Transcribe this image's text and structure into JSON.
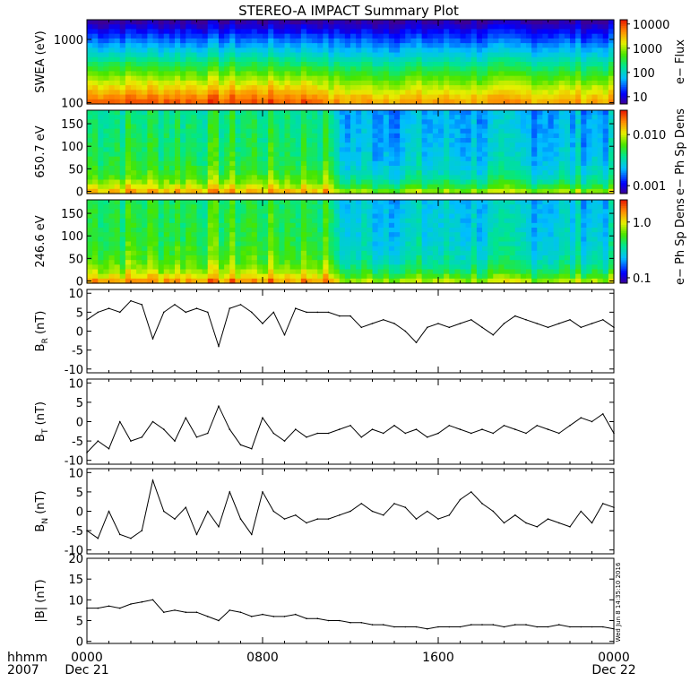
{
  "chart_data": {
    "title": "STEREO-A IMPACT Summary Plot",
    "time_axis": {
      "row_labels": [
        "hhmm",
        "2007"
      ],
      "ticks": [
        {
          "t": 0,
          "label": "0000",
          "sub": "Dec 21"
        },
        {
          "t": 8,
          "label": "0800",
          "sub": ""
        },
        {
          "t": 16,
          "label": "1600",
          "sub": ""
        },
        {
          "t": 24,
          "label": "0000",
          "sub": "Dec 22"
        }
      ],
      "range_hours": [
        0,
        24
      ]
    },
    "stamp": "Wed Jun  8 14:35:10 2016",
    "panels": [
      {
        "id": "swea",
        "type": "heatmap",
        "ylabel": "SWEA (eV)",
        "yscale": "log",
        "ylim": [
          95,
          2050
        ],
        "yticks": [
          {
            "v": 1000,
            "label": "1000"
          },
          {
            "v": 100,
            "label": "100"
          }
        ],
        "colorbar": {
          "scale": "log",
          "range": [
            5,
            15000
          ],
          "label": "e− Flux",
          "ticks": [
            {
              "v": 10000,
              "label": "10000"
            },
            {
              "v": 1000,
              "label": "1000"
            },
            {
              "v": 100,
              "label": "100"
            },
            {
              "v": 10,
              "label": "10"
            }
          ]
        }
      },
      {
        "id": "pad650",
        "type": "heatmap",
        "ylabel": "650.7 eV",
        "ylim": [
          -5,
          180
        ],
        "yticks": [
          {
            "v": 150,
            "label": "150"
          },
          {
            "v": 100,
            "label": "100"
          },
          {
            "v": 50,
            "label": "50"
          },
          {
            "v": 0,
            "label": "0"
          }
        ],
        "colorbar": {
          "scale": "log",
          "range": [
            0.0007,
            0.03
          ],
          "label": "e− Ph Sp Dens",
          "ticks": [
            {
              "v": 0.01,
              "label": "0.010"
            },
            {
              "v": 0.001,
              "label": "0.001"
            }
          ]
        }
      },
      {
        "id": "pad246",
        "type": "heatmap",
        "ylabel": "246.6 eV",
        "ylim": [
          -5,
          180
        ],
        "yticks": [
          {
            "v": 150,
            "label": "150"
          },
          {
            "v": 100,
            "label": "100"
          },
          {
            "v": 50,
            "label": "50"
          },
          {
            "v": 0,
            "label": "0"
          }
        ],
        "colorbar": {
          "scale": "log",
          "range": [
            0.08,
            2.5
          ],
          "label": "e− Ph Sp Dens",
          "ticks": [
            {
              "v": 1.0,
              "label": "1.0"
            },
            {
              "v": 0.1,
              "label": "0.1"
            }
          ]
        }
      },
      {
        "id": "br",
        "type": "line",
        "ylabel": "B",
        "ysub": "R",
        "yunit": " (nT)",
        "ylim": [
          -11,
          11
        ],
        "yticks": [
          {
            "v": 10,
            "label": "10"
          },
          {
            "v": 5,
            "label": "5"
          },
          {
            "v": 0,
            "label": "0"
          },
          {
            "v": -5,
            "label": "-5"
          },
          {
            "v": -10,
            "label": "-10"
          }
        ],
        "x": [
          0,
          0.5,
          1,
          1.5,
          2,
          2.5,
          3,
          3.5,
          4,
          4.5,
          5,
          5.5,
          6,
          6.5,
          7,
          7.5,
          8,
          8.5,
          9,
          9.5,
          10,
          10.5,
          11,
          11.5,
          12,
          12.5,
          13,
          13.5,
          14,
          14.5,
          15,
          15.5,
          16,
          16.5,
          17,
          17.5,
          18,
          18.5,
          19,
          19.5,
          20,
          20.5,
          21,
          21.5,
          22,
          22.5,
          23,
          23.5,
          24
        ],
        "values": [
          3,
          5,
          6,
          5,
          8,
          7,
          -2,
          5,
          7,
          5,
          6,
          5,
          -4,
          6,
          7,
          5,
          2,
          5,
          -1,
          6,
          5,
          5,
          5,
          4,
          4,
          1,
          2,
          3,
          2,
          0,
          -3,
          1,
          2,
          1,
          2,
          3,
          1,
          -1,
          2,
          4,
          3,
          2,
          1,
          2,
          3,
          1,
          2,
          3,
          1
        ]
      },
      {
        "id": "bt",
        "type": "line",
        "ylabel": "B",
        "ysub": "T",
        "yunit": " (nT)",
        "ylim": [
          -11,
          11
        ],
        "yticks": [
          {
            "v": 10,
            "label": "10"
          },
          {
            "v": 5,
            "label": "5"
          },
          {
            "v": 0,
            "label": "0"
          },
          {
            "v": -5,
            "label": "-5"
          },
          {
            "v": -10,
            "label": "-10"
          }
        ],
        "x": [
          0,
          0.5,
          1,
          1.5,
          2,
          2.5,
          3,
          3.5,
          4,
          4.5,
          5,
          5.5,
          6,
          6.5,
          7,
          7.5,
          8,
          8.5,
          9,
          9.5,
          10,
          10.5,
          11,
          11.5,
          12,
          12.5,
          13,
          13.5,
          14,
          14.5,
          15,
          15.5,
          16,
          16.5,
          17,
          17.5,
          18,
          18.5,
          19,
          19.5,
          20,
          20.5,
          21,
          21.5,
          22,
          22.5,
          23,
          23.5,
          24
        ],
        "values": [
          -8,
          -5,
          -7,
          0,
          -5,
          -4,
          0,
          -2,
          -5,
          1,
          -4,
          -3,
          4,
          -2,
          -6,
          -7,
          1,
          -3,
          -5,
          -2,
          -4,
          -3,
          -3,
          -2,
          -1,
          -4,
          -2,
          -3,
          -1,
          -3,
          -2,
          -4,
          -3,
          -1,
          -2,
          -3,
          -2,
          -3,
          -1,
          -2,
          -3,
          -1,
          -2,
          -3,
          -1,
          1,
          0,
          2,
          -3
        ]
      },
      {
        "id": "bn",
        "type": "line",
        "ylabel": "B",
        "ysub": "N",
        "yunit": " (nT)",
        "ylim": [
          -11,
          11
        ],
        "yticks": [
          {
            "v": 10,
            "label": "10"
          },
          {
            "v": 5,
            "label": "5"
          },
          {
            "v": 0,
            "label": "0"
          },
          {
            "v": -5,
            "label": "-5"
          },
          {
            "v": -10,
            "label": "-10"
          }
        ],
        "x": [
          0,
          0.5,
          1,
          1.5,
          2,
          2.5,
          3,
          3.5,
          4,
          4.5,
          5,
          5.5,
          6,
          6.5,
          7,
          7.5,
          8,
          8.5,
          9,
          9.5,
          10,
          10.5,
          11,
          11.5,
          12,
          12.5,
          13,
          13.5,
          14,
          14.5,
          15,
          15.5,
          16,
          16.5,
          17,
          17.5,
          18,
          18.5,
          19,
          19.5,
          20,
          20.5,
          21,
          21.5,
          22,
          22.5,
          23,
          23.5,
          24
        ],
        "values": [
          -5,
          -7,
          0,
          -6,
          -7,
          -5,
          8,
          0,
          -2,
          1,
          -6,
          0,
          -4,
          5,
          -2,
          -6,
          5,
          0,
          -2,
          -1,
          -3,
          -2,
          -2,
          -1,
          0,
          2,
          0,
          -1,
          2,
          1,
          -2,
          0,
          -2,
          -1,
          3,
          5,
          2,
          0,
          -3,
          -1,
          -3,
          -4,
          -2,
          -3,
          -4,
          0,
          -3,
          2,
          1
        ]
      },
      {
        "id": "bmag",
        "type": "line",
        "ylabel": "|B| (nT)",
        "ylim": [
          -0.5,
          20
        ],
        "yticks": [
          {
            "v": 20,
            "label": "20"
          },
          {
            "v": 15,
            "label": "15"
          },
          {
            "v": 10,
            "label": "10"
          },
          {
            "v": 5,
            "label": "5"
          },
          {
            "v": 0,
            "label": "0"
          }
        ],
        "x": [
          0,
          0.5,
          1,
          1.5,
          2,
          2.5,
          3,
          3.5,
          4,
          4.5,
          5,
          5.5,
          6,
          6.5,
          7,
          7.5,
          8,
          8.5,
          9,
          9.5,
          10,
          10.5,
          11,
          11.5,
          12,
          12.5,
          13,
          13.5,
          14,
          14.5,
          15,
          15.5,
          16,
          16.5,
          17,
          17.5,
          18,
          18.5,
          19,
          19.5,
          20,
          20.5,
          21,
          21.5,
          22,
          22.5,
          23,
          23.5,
          24
        ],
        "values": [
          8,
          8,
          8.5,
          8,
          9,
          9.5,
          10,
          7,
          7.5,
          7,
          7,
          6,
          5,
          7.5,
          7,
          6,
          6.5,
          6,
          6,
          6.5,
          5.5,
          5.5,
          5,
          5,
          4.5,
          4.5,
          4,
          4,
          3.5,
          3.5,
          3.5,
          3,
          3.5,
          3.5,
          3.5,
          4,
          4,
          4,
          3.5,
          4,
          4,
          3.5,
          3.5,
          4,
          3.5,
          3.5,
          3.5,
          3.5,
          3
        ]
      }
    ]
  }
}
